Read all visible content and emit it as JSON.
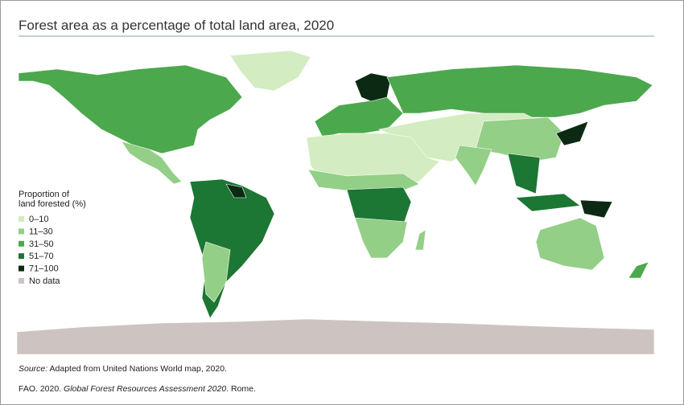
{
  "title": "Forest area as a percentage of total land area, 2020",
  "legend": {
    "title": [
      "Proportion of",
      "land forested (%)"
    ],
    "items": [
      {
        "label": "0–10",
        "color": "#d3ecc1"
      },
      {
        "label": "11–30",
        "color": "#93cf86"
      },
      {
        "label": "31–50",
        "color": "#4ca84d"
      },
      {
        "label": "51–70",
        "color": "#1c7634"
      },
      {
        "label": "71–100",
        "color": "#0c2a13"
      },
      {
        "label": "No data",
        "color": "#cdc4c1"
      }
    ]
  },
  "source": {
    "label": "Source:",
    "text": "Adapted from United Nations World map, 2020."
  },
  "citation": {
    "prefix": "FAO. 2020.",
    "title": "Global Forest Resources Assessment 2020",
    "suffix": ". Rome."
  }
}
